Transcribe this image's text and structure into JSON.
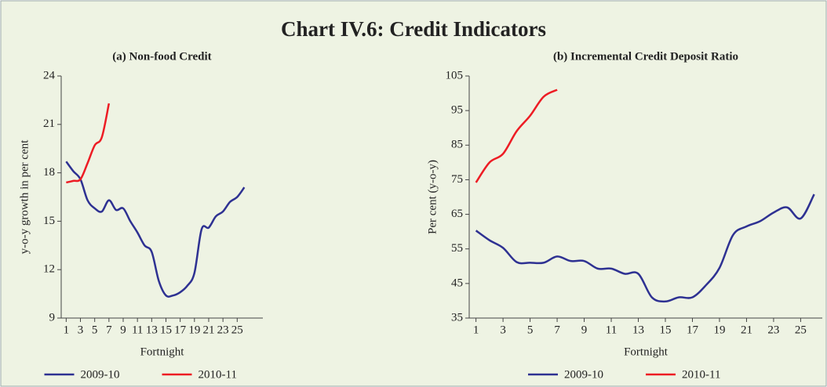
{
  "title": "Chart IV.6: Credit Indicators",
  "chart_data": [
    {
      "type": "line",
      "title": "(a) Non-food Credit",
      "xlabel": "Fortnight",
      "ylabel": "y-o-y growth in per cent",
      "x": [
        1,
        2,
        3,
        4,
        5,
        6,
        7,
        8,
        9,
        10,
        11,
        12,
        13,
        14,
        15,
        16,
        17,
        18,
        19,
        20,
        21,
        22,
        23,
        24,
        25,
        26
      ],
      "series": [
        {
          "name": "2009-10",
          "color": "#2e3192",
          "values": [
            18.7,
            18.1,
            17.6,
            16.3,
            15.8,
            15.6,
            16.3,
            15.7,
            15.8,
            15.0,
            14.3,
            13.5,
            13.1,
            11.3,
            10.4,
            10.4,
            10.6,
            11.0,
            11.8,
            14.5,
            14.6,
            15.3,
            15.6,
            16.2,
            16.5,
            17.1
          ]
        },
        {
          "name": "2010-11",
          "color": "#ed1c24",
          "values": [
            17.4,
            17.5,
            17.6,
            18.6,
            19.7,
            20.2,
            22.3,
            null,
            null,
            null,
            null,
            null,
            null,
            null,
            null,
            null,
            null,
            null,
            null,
            null,
            null,
            null,
            null,
            null,
            null,
            null
          ]
        }
      ],
      "xlim": [
        0.3,
        28.6
      ],
      "xticks": [
        1,
        3,
        5,
        7,
        9,
        11,
        13,
        15,
        17,
        19,
        21,
        23,
        25
      ],
      "ylim": [
        9,
        24
      ],
      "yticks": [
        9,
        12,
        15,
        18,
        21,
        24
      ]
    },
    {
      "type": "line",
      "title": "(b) Incremental Credit Deposit Ratio",
      "xlabel": "Fortnight",
      "ylabel": "Per cent (y-o-y)",
      "x": [
        1,
        2,
        3,
        4,
        5,
        6,
        7,
        8,
        9,
        10,
        11,
        12,
        13,
        14,
        15,
        16,
        17,
        18,
        19,
        20,
        21,
        22,
        23,
        24,
        25,
        26
      ],
      "series": [
        {
          "name": "2009-10",
          "color": "#2e3192",
          "values": [
            60.3,
            57.5,
            55.3,
            51.2,
            51.0,
            51.0,
            52.8,
            51.5,
            51.5,
            49.3,
            49.3,
            47.8,
            47.8,
            41.0,
            39.8,
            41.0,
            41.0,
            44.5,
            49.5,
            59.0,
            61.5,
            63.0,
            65.5,
            67.0,
            63.8,
            70.8
          ]
        },
        {
          "name": "2010-11",
          "color": "#ed1c24",
          "values": [
            74.2,
            80.0,
            82.5,
            89.0,
            93.5,
            99.0,
            101.0,
            null,
            null,
            null,
            null,
            null,
            null,
            null,
            null,
            null,
            null,
            null,
            null,
            null,
            null,
            null,
            null,
            null,
            null,
            null
          ]
        }
      ],
      "xlim": [
        0.5,
        26.6
      ],
      "xticks": [
        1,
        3,
        5,
        7,
        9,
        11,
        13,
        15,
        17,
        19,
        21,
        23,
        25
      ],
      "ylim": [
        35,
        105
      ],
      "yticks": [
        35,
        45,
        55,
        65,
        75,
        85,
        95,
        105
      ]
    }
  ]
}
